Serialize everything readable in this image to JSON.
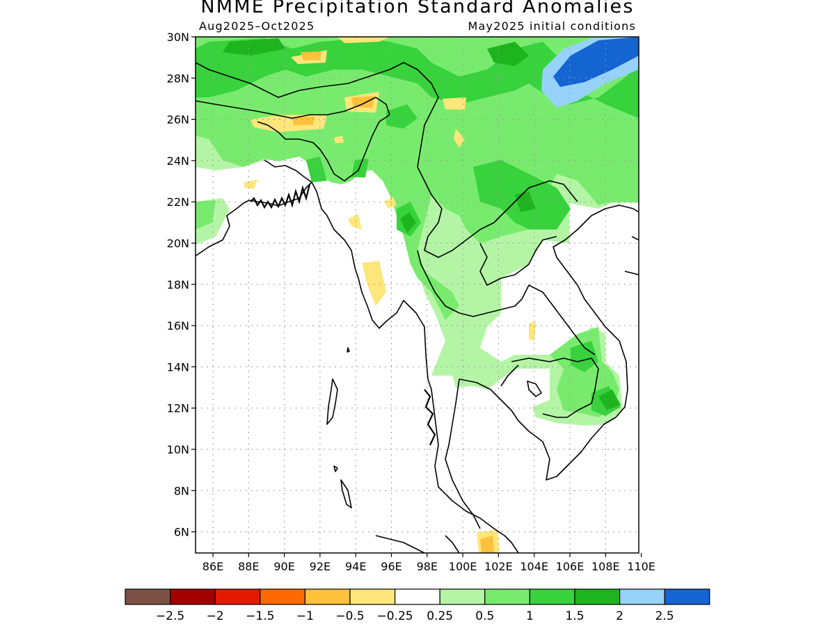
{
  "title": "NMME Precipitation Standard Anomalies",
  "subtitle_left": "Aug2025–Oct2025",
  "subtitle_right": "May2025 initial conditions",
  "lat_labels": [
    "30N",
    "28N",
    "26N",
    "24N",
    "22N",
    "20N",
    "18N",
    "16N",
    "14N",
    "12N",
    "10N",
    "8N",
    "6N"
  ],
  "lon_labels": [
    "86E",
    "88E",
    "90E",
    "92E",
    "94E",
    "96E",
    "98E",
    "100E",
    "102E",
    "104E",
    "106E",
    "108E",
    "110E"
  ],
  "colorbar": {
    "colors": [
      "#7b5145",
      "#a30000",
      "#e41a00",
      "#ff6a00",
      "#ffc13c",
      "#ffe67a",
      "#ffffff",
      "#b4f5a5",
      "#78eb6e",
      "#37d23c",
      "#1eb41e",
      "#96d2fa",
      "#1464d2"
    ],
    "labels": [
      "−2.5",
      "−2",
      "−1.5",
      "−1",
      "−0.5",
      "−0.25",
      "0.25",
      "0.5",
      "1",
      "1.5",
      "2",
      "2.5"
    ]
  },
  "map_colors": {
    "light_green": "#b4f5a5",
    "green": "#78eb6e",
    "mid_green": "#37d23c",
    "dark_green": "#1eb41e",
    "light_blue": "#96d2fa",
    "blue": "#1464d2",
    "light_yellow": "#ffe67a",
    "orange": "#ffc13c"
  }
}
